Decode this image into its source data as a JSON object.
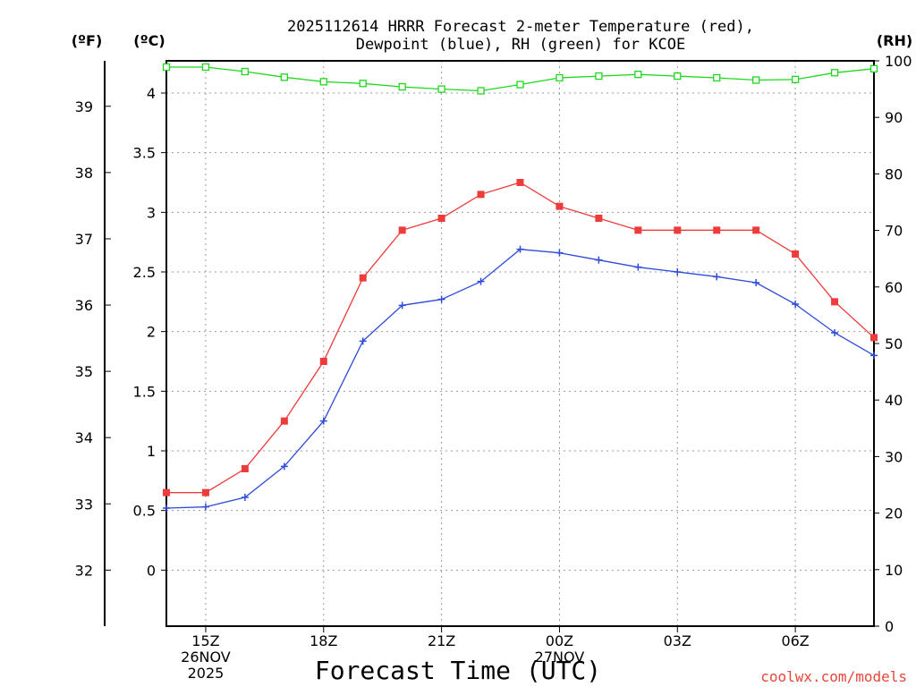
{
  "title_line1": "2025112614 HRRR Forecast 2-meter Temperature (red),",
  "title_line2": "Dewpoint (blue), RH (green) for KCOE",
  "unit_f": "(ºF)",
  "unit_c": "(ºC)",
  "unit_rh": "(RH)",
  "credit": "coolwx.com/models",
  "chart_data": {
    "type": "line",
    "title": "2025112614 HRRR Forecast 2-meter Temperature (red), Dewpoint (blue), RH (green) for KCOE",
    "xlabel": "Forecast Time (UTC)",
    "x": [
      14,
      15,
      16,
      17,
      18,
      19,
      20,
      21,
      22,
      23,
      24,
      25,
      26,
      27,
      28,
      29,
      30,
      31,
      32
    ],
    "x_range": [
      14,
      32
    ],
    "x_ticks": [
      {
        "x": 15,
        "lines": [
          "15Z",
          "26NOV",
          "2025"
        ]
      },
      {
        "x": 18,
        "lines": [
          "18Z"
        ]
      },
      {
        "x": 21,
        "lines": [
          "21Z"
        ]
      },
      {
        "x": 24,
        "lines": [
          "00Z",
          "27NOV"
        ]
      },
      {
        "x": 27,
        "lines": [
          "03Z"
        ]
      },
      {
        "x": 30,
        "lines": [
          "06Z"
        ]
      }
    ],
    "y_left_celsius": {
      "range": [
        -0.47,
        4.27
      ],
      "ticks": [
        0,
        0.5,
        1,
        1.5,
        2,
        2.5,
        3,
        3.5,
        4
      ]
    },
    "y_left_fahrenheit": {
      "ticks": [
        32,
        33,
        34,
        35,
        36,
        37,
        38,
        39
      ]
    },
    "y_right_rh": {
      "range": [
        0,
        100
      ],
      "ticks": [
        0,
        10,
        20,
        30,
        40,
        50,
        60,
        70,
        80,
        90,
        100
      ]
    },
    "series": [
      {
        "name": "Temperature",
        "color": "#ee3b3b",
        "marker": "filled-square",
        "axis": "celsius",
        "values": [
          0.65,
          0.65,
          0.85,
          1.25,
          1.75,
          2.45,
          2.85,
          2.95,
          3.15,
          3.25,
          3.05,
          2.95,
          2.85,
          2.85,
          2.85,
          2.85,
          2.65,
          2.25,
          1.95
        ]
      },
      {
        "name": "Dewpoint",
        "color": "#2e4bd9",
        "marker": "plus",
        "axis": "celsius",
        "values": [
          0.52,
          0.53,
          0.61,
          0.87,
          1.25,
          1.92,
          2.22,
          2.27,
          2.42,
          2.69,
          2.66,
          2.6,
          2.54,
          2.5,
          2.46,
          2.41,
          2.23,
          1.99,
          1.8
        ]
      },
      {
        "name": "RH",
        "color": "#1ed81e",
        "marker": "open-square",
        "axis": "rh",
        "values": [
          98.9,
          98.9,
          98.1,
          97.1,
          96.3,
          96.0,
          95.4,
          95.0,
          94.7,
          95.8,
          97.0,
          97.3,
          97.6,
          97.3,
          97.0,
          96.6,
          96.7,
          97.9,
          98.6
        ]
      }
    ]
  }
}
